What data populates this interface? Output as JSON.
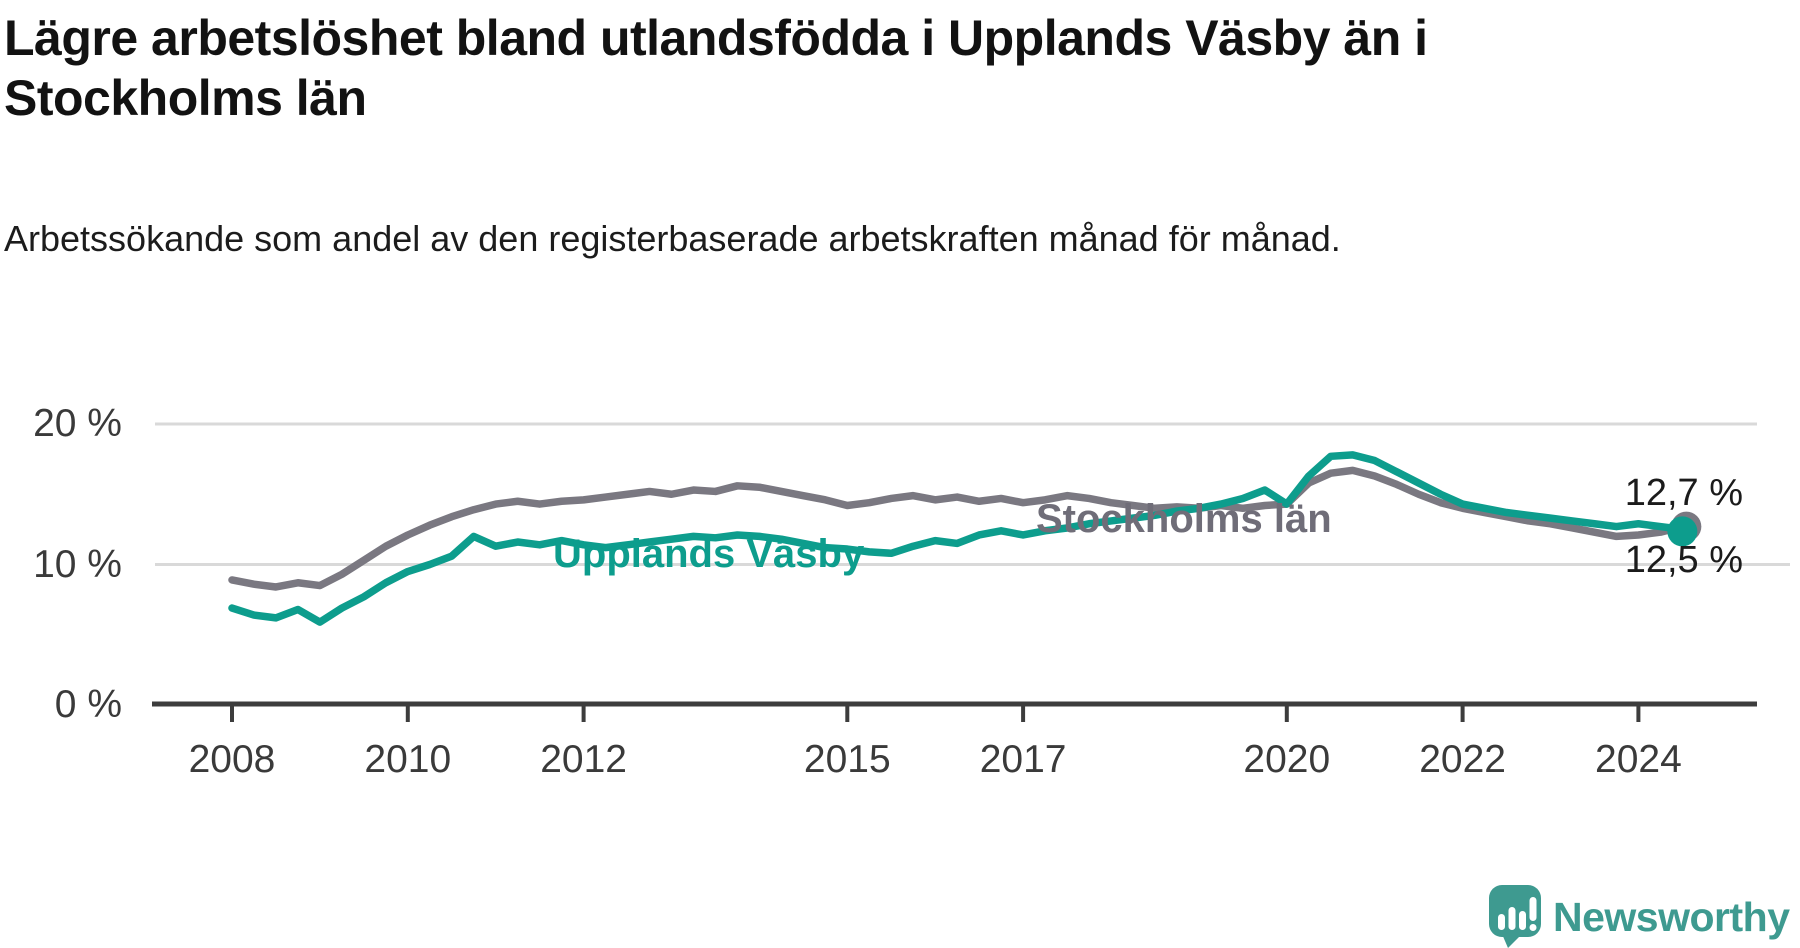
{
  "header": {
    "title": "Lägre arbetslöshet bland utlandsfödda i Upplands Väsby än i Stockholms län",
    "subtitle": "Arbetssökande som andel av den registerbaserade arbetskraften månad för månad."
  },
  "colors": {
    "upplands_vasby": "#0d9d8d",
    "stockholms_lan": "#7a7881",
    "stockholms_label": "#6f6d78",
    "gridline": "#d9d9d9",
    "axis": "#3d3d3d",
    "tick_text": "#3a3a3a",
    "logo_teal": "#3e9a90"
  },
  "labels": {
    "series_upplands_vasby": "Upplands Väsby",
    "series_stockholms_lan": "Stockholms län",
    "end_value_stockholms_lan": "12,7 %",
    "end_value_upplands_vasby": "12,5 %"
  },
  "logo": {
    "text": "Newsworthy"
  },
  "chart_data": {
    "type": "line",
    "title": "Lägre arbetslöshet bland utlandsfödda i Upplands Väsby än i Stockholms län",
    "subtitle": "Arbetssökande som andel av den registerbaserade arbetskraften månad för månad.",
    "x_unit": "decimal_year",
    "xlim": [
      2007.1,
      2025.4
    ],
    "ylim": [
      0,
      21.4
    ],
    "grid": "horizontal",
    "legend_position": "inline-labels",
    "yticks": [
      {
        "value": 20,
        "label": "20 %",
        "grid": true
      },
      {
        "value": 10,
        "label": "10 %",
        "grid": true
      },
      {
        "value": 0,
        "label": "0 %",
        "grid": false
      }
    ],
    "xticks": [
      {
        "value": 2008,
        "label": "2008"
      },
      {
        "value": 2010,
        "label": "2010"
      },
      {
        "value": 2012,
        "label": "2012"
      },
      {
        "value": 2015,
        "label": "2015"
      },
      {
        "value": 2017,
        "label": "2017"
      },
      {
        "value": 2020,
        "label": "2020"
      },
      {
        "value": 2022,
        "label": "2022"
      },
      {
        "value": 2024,
        "label": "2024"
      }
    ],
    "x": [
      2008.0,
      2008.25,
      2008.5,
      2008.75,
      2009.0,
      2009.25,
      2009.5,
      2009.75,
      2010.0,
      2010.25,
      2010.5,
      2010.75,
      2011.0,
      2011.25,
      2011.5,
      2011.75,
      2012.0,
      2012.25,
      2012.5,
      2012.75,
      2013.0,
      2013.25,
      2013.5,
      2013.75,
      2014.0,
      2014.25,
      2014.5,
      2014.75,
      2015.0,
      2015.25,
      2015.5,
      2015.75,
      2016.0,
      2016.25,
      2016.5,
      2016.75,
      2017.0,
      2017.25,
      2017.5,
      2017.75,
      2018.0,
      2018.25,
      2018.5,
      2018.75,
      2019.0,
      2019.25,
      2019.5,
      2019.75,
      2020.0,
      2020.25,
      2020.5,
      2020.75,
      2021.0,
      2021.25,
      2021.5,
      2021.75,
      2022.0,
      2022.25,
      2022.5,
      2022.75,
      2023.0,
      2023.25,
      2023.5,
      2023.75,
      2024.0,
      2024.25,
      2024.5
    ],
    "series": [
      {
        "name": "Stockholms län",
        "color": "#7a7881",
        "end_label": "12,7 %",
        "values": [
          8.9,
          8.6,
          8.4,
          8.7,
          8.5,
          9.3,
          10.3,
          11.3,
          12.1,
          12.8,
          13.4,
          13.9,
          14.3,
          14.5,
          14.3,
          14.5,
          14.6,
          14.8,
          15.0,
          15.2,
          15.0,
          15.3,
          15.2,
          15.6,
          15.5,
          15.2,
          14.9,
          14.6,
          14.2,
          14.4,
          14.7,
          14.9,
          14.6,
          14.8,
          14.5,
          14.7,
          14.4,
          14.6,
          14.9,
          14.7,
          14.4,
          14.2,
          14.0,
          14.1,
          14.0,
          14.2,
          14.0,
          14.2,
          14.3,
          15.8,
          16.5,
          16.7,
          16.3,
          15.7,
          15.0,
          14.4,
          14.0,
          13.7,
          13.4,
          13.1,
          12.9,
          12.6,
          12.3,
          12.0,
          12.1,
          12.3,
          12.7
        ]
      },
      {
        "name": "Upplands Väsby",
        "color": "#0d9d8d",
        "end_label": "12,5 %",
        "values": [
          6.9,
          6.4,
          6.2,
          6.8,
          5.9,
          6.9,
          7.7,
          8.7,
          9.5,
          10.0,
          10.6,
          12.0,
          11.3,
          11.6,
          11.4,
          11.7,
          11.4,
          11.2,
          11.4,
          11.6,
          11.8,
          12.0,
          11.9,
          12.1,
          12.0,
          11.8,
          11.5,
          11.2,
          11.1,
          10.9,
          10.8,
          11.3,
          11.7,
          11.5,
          12.1,
          12.4,
          12.1,
          12.4,
          12.6,
          12.9,
          13.1,
          13.3,
          13.5,
          13.8,
          14.0,
          14.3,
          14.7,
          15.3,
          14.3,
          16.3,
          17.7,
          17.8,
          17.4,
          16.6,
          15.8,
          15.0,
          14.3,
          14.0,
          13.7,
          13.5,
          13.3,
          13.1,
          12.9,
          12.7,
          12.9,
          12.7,
          12.5
        ]
      }
    ]
  }
}
